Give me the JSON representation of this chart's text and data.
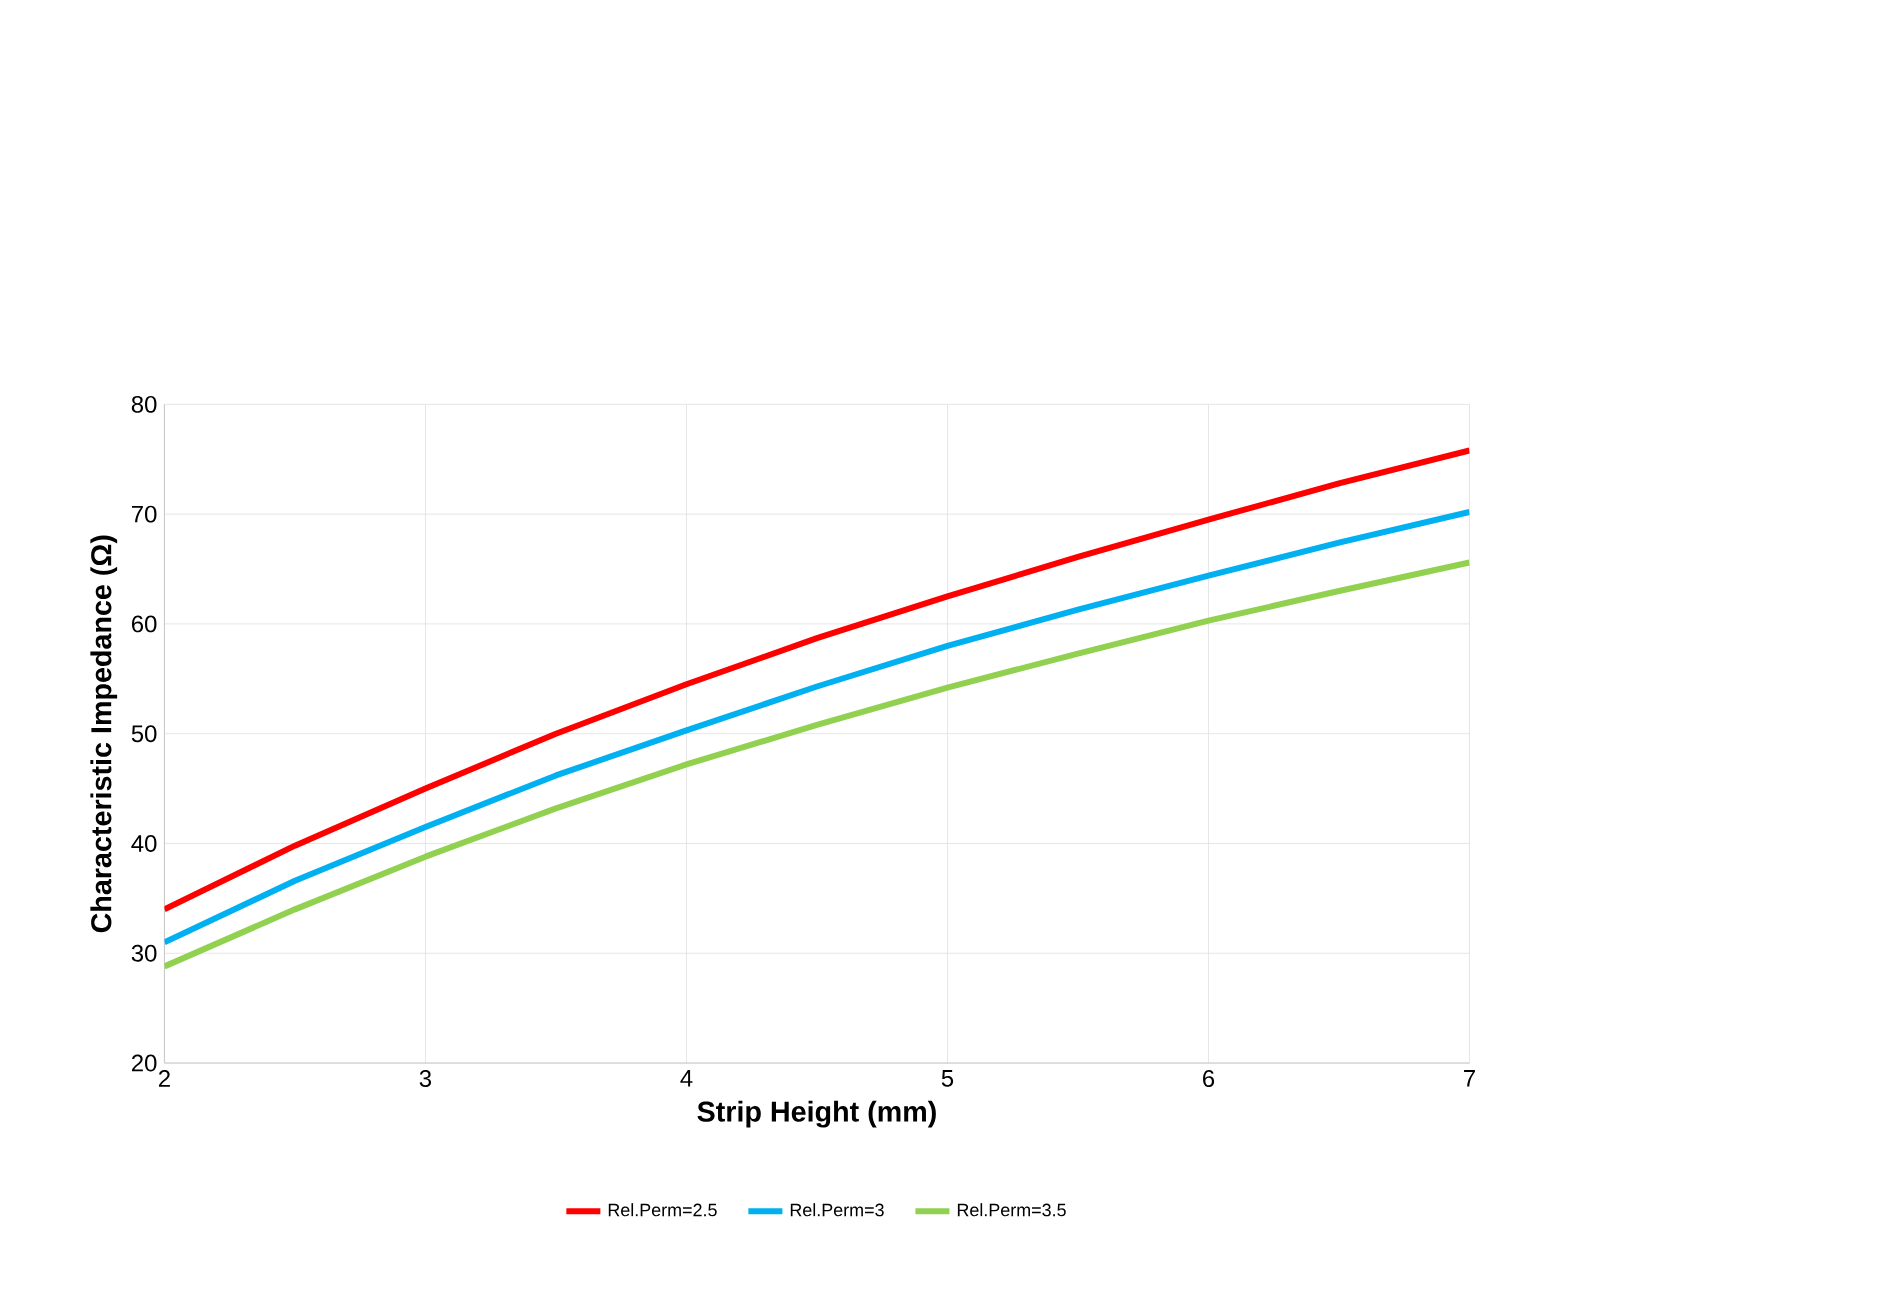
{
  "chart_data": {
    "type": "line",
    "xlabel": "Strip Height (mm)",
    "ylabel": "Characteristic Impedance (Ω)",
    "xlim": [
      2,
      7
    ],
    "xticks": [
      2,
      3,
      4,
      5,
      6,
      7
    ],
    "ylim": [
      20,
      80
    ],
    "yticks": [
      20,
      30,
      40,
      50,
      60,
      70,
      80
    ],
    "grid": true,
    "legend": "bottom",
    "marker": "none",
    "line_style": "solid",
    "x": [
      2,
      2.5,
      3,
      3.5,
      4,
      4.5,
      5,
      5.5,
      6,
      6.5,
      7
    ],
    "series": [
      {
        "name": "Rel.Perm=2.5",
        "color": "#ff0000",
        "values": [
          34,
          39.8,
          45,
          50,
          54.5,
          58.7,
          62.5,
          66.1,
          69.5,
          72.8,
          75.8
        ]
      },
      {
        "name": "Rel.Perm=3",
        "color": "#00b0f0",
        "values": [
          31,
          36.6,
          41.5,
          46.2,
          50.3,
          54.3,
          58,
          61.3,
          64.4,
          67.4,
          70.2
        ]
      },
      {
        "name": "Rel.Perm=3.5",
        "color": "#92d050",
        "values": [
          28.8,
          34,
          38.8,
          43.2,
          47.2,
          50.8,
          54.2,
          57.3,
          60.3,
          63,
          65.6
        ]
      }
    ]
  }
}
